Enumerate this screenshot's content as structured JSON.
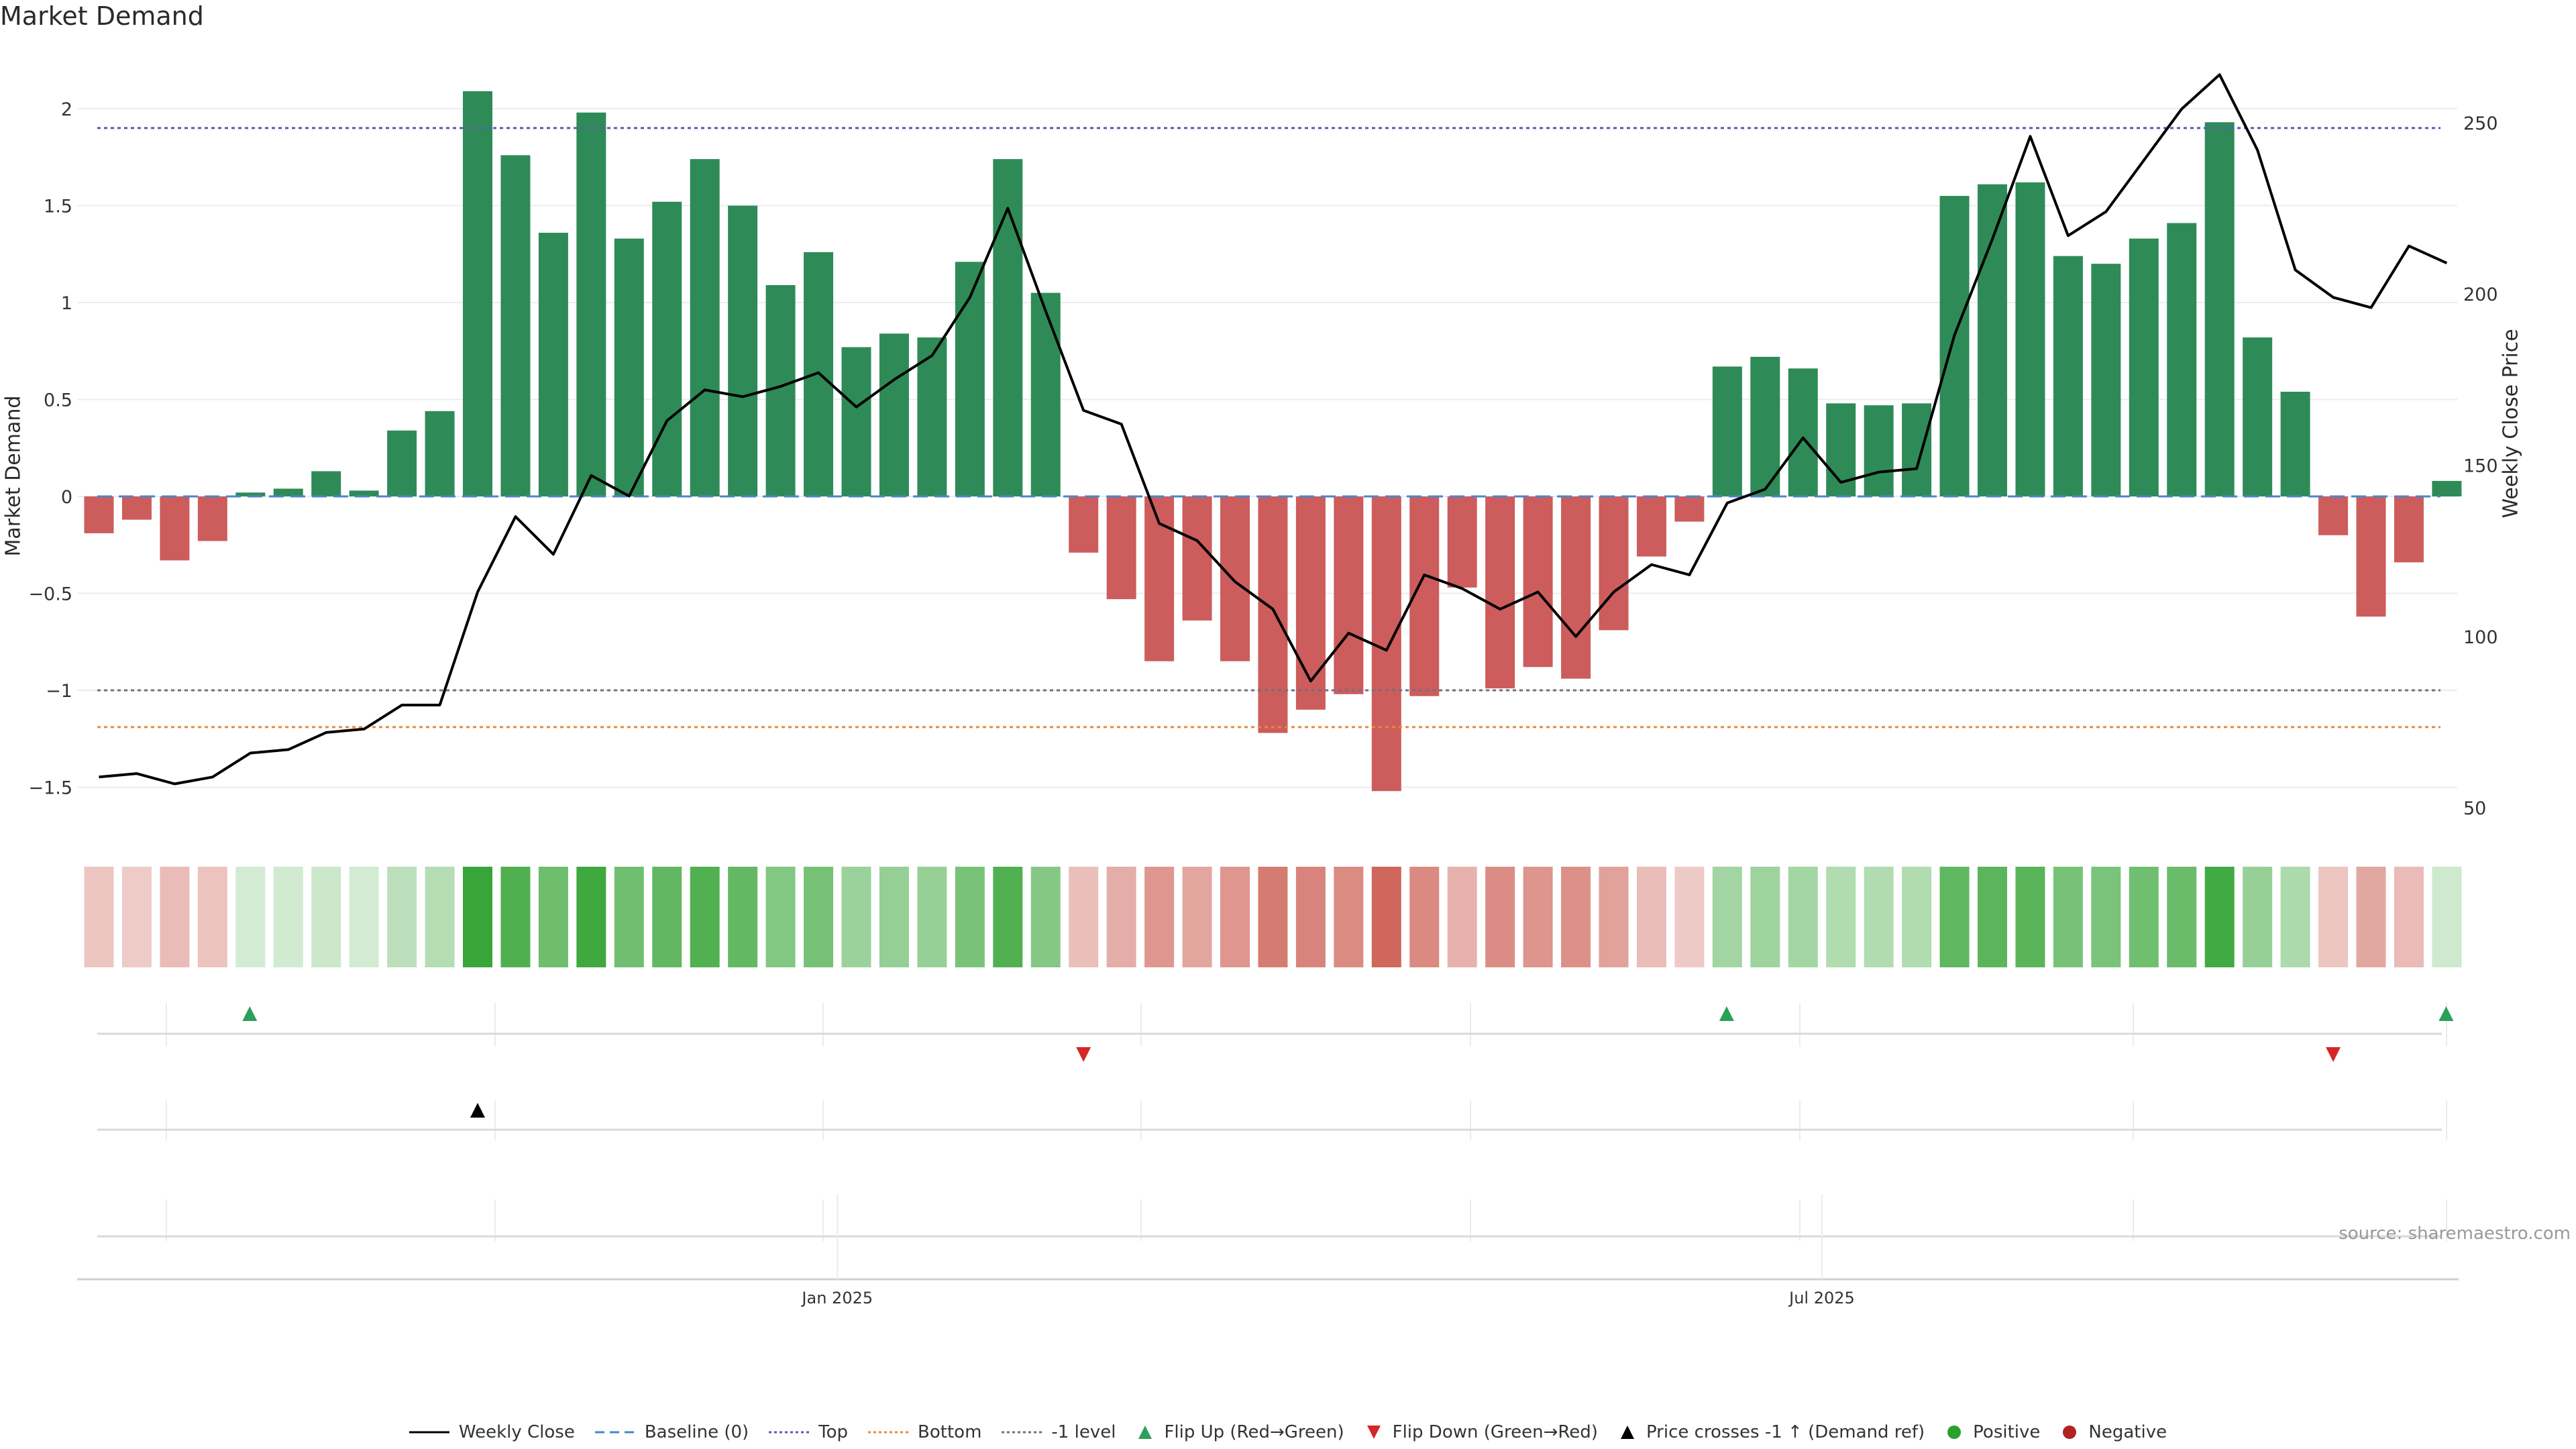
{
  "title": "Market Demand",
  "source": "source: sharemaestro.com",
  "chart_data": {
    "type": "bar",
    "title": "Market Demand",
    "ylabel_left": "Market Demand",
    "ylabel_right": "Weekly Close Price",
    "ylim_left": [
      -1.72,
      2.3
    ],
    "ylim_right": [
      43,
      276
    ],
    "left_ticks": [
      -1.5,
      -1,
      -0.5,
      0,
      0.5,
      1,
      1.5,
      2
    ],
    "left_tick_labels": [
      "−1.5",
      "−1",
      "−0.5",
      "0",
      "0.5",
      "1",
      "1.5",
      "2"
    ],
    "right_ticks": [
      50,
      100,
      150,
      200,
      250
    ],
    "right_tick_labels": [
      "50",
      "100",
      "150",
      "200",
      "250"
    ],
    "x_tick_labels": [
      {
        "label": "Jan 2025",
        "week": 19.5
      },
      {
        "label": "Jul 2025",
        "week": 45.5
      }
    ],
    "demand": [
      -0.19,
      -0.12,
      -0.33,
      -0.23,
      0.02,
      0.04,
      0.13,
      0.03,
      0.34,
      0.44,
      2.09,
      1.76,
      1.36,
      1.98,
      1.33,
      1.52,
      1.74,
      1.5,
      1.09,
      1.26,
      0.77,
      0.84,
      0.82,
      1.21,
      1.74,
      1.05,
      -0.29,
      -0.53,
      -0.85,
      -0.64,
      -0.85,
      -1.22,
      -1.1,
      -1.02,
      -1.52,
      -1.03,
      -0.47,
      -0.99,
      -0.88,
      -0.94,
      -0.69,
      -0.31,
      -0.13,
      0.67,
      0.72,
      0.66,
      0.48,
      0.47,
      0.48,
      1.55,
      1.61,
      1.62,
      1.24,
      1.2,
      1.33,
      1.41,
      1.93,
      0.82,
      0.54,
      -0.2,
      -0.62,
      -0.34,
      0.08
    ],
    "weekly_close": [
      59,
      60,
      57,
      59,
      66,
      67,
      72,
      73,
      80,
      80,
      113,
      135,
      124,
      147,
      141,
      163,
      172,
      170,
      173,
      177,
      167,
      175,
      182,
      199,
      225,
      195,
      166,
      162,
      133,
      128,
      116,
      108,
      87,
      101,
      96,
      118,
      114,
      108,
      113,
      100,
      113,
      121,
      118,
      139,
      143,
      158,
      145,
      148,
      149,
      188,
      216,
      246,
      217,
      224,
      239,
      254,
      264,
      242,
      207,
      199,
      196,
      214,
      209
    ],
    "reference_lines": [
      {
        "name": "Top",
        "value": 1.9,
        "color": "#5b5bb5"
      },
      {
        "name": "Bottom",
        "value": -1.19,
        "color": "#e8893a"
      },
      {
        "name": "-1 level",
        "value": -1,
        "color": "#707080"
      },
      {
        "name": "Baseline (0)",
        "value": 0,
        "color": "#4a86c8"
      }
    ],
    "flip_up_weeks": [
      4,
      43,
      62
    ],
    "flip_down_weeks": [
      26,
      59
    ],
    "price_cross_weeks": [
      10
    ],
    "colors": {
      "positive": "#2e8b57",
      "negative": "#cd5c5c",
      "price_line": "#000000",
      "flip_up": "#2ca05a",
      "flip_down": "#d62728",
      "price_cross": "#000000",
      "positive_dot": "#2ca02c",
      "negative_dot": "#b22222"
    }
  },
  "legend": [
    {
      "key": "weekly-close",
      "label": "Weekly Close",
      "icon": "solid-line",
      "color": "#000000"
    },
    {
      "key": "baseline",
      "label": "Baseline (0)",
      "icon": "dashed-line",
      "color": "#4a86c8"
    },
    {
      "key": "top",
      "label": "Top",
      "icon": "dotted-line",
      "color": "#5b5bb5"
    },
    {
      "key": "bottom",
      "label": "Bottom",
      "icon": "dotted-line",
      "color": "#e8893a"
    },
    {
      "key": "minus-one",
      "label": "-1 level",
      "icon": "dotted-line",
      "color": "#707080"
    },
    {
      "key": "flip-up",
      "label": "Flip Up (Red→Green)",
      "icon": "triangle-up",
      "color": "#2ca05a"
    },
    {
      "key": "flip-down",
      "label": "Flip Down (Green→Red)",
      "icon": "triangle-down",
      "color": "#d62728"
    },
    {
      "key": "price-cross",
      "label": "Price crosses -1 ↑ (Demand ref)",
      "icon": "triangle-up",
      "color": "#000000"
    },
    {
      "key": "positive",
      "label": "Positive",
      "icon": "dot",
      "color": "#2ca02c"
    },
    {
      "key": "negative",
      "label": "Negative",
      "icon": "dot",
      "color": "#b22222"
    }
  ]
}
